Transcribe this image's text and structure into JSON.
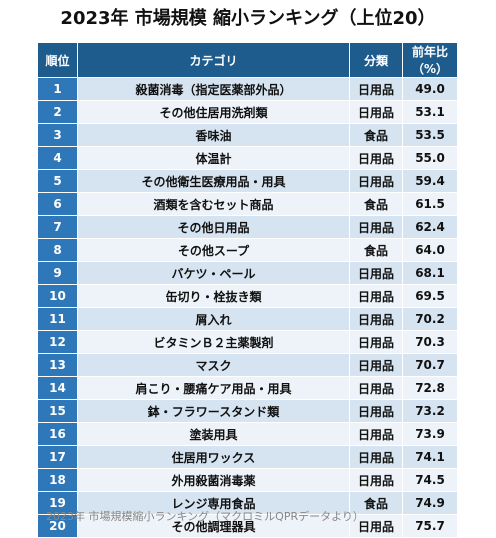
{
  "title": "2023年 市場規模 縮小ランキング（上位20）",
  "headers": {
    "rank": "順位",
    "category": "カテゴリ",
    "classification": "分類",
    "ratio": "前年比（%）"
  },
  "rows": [
    {
      "rank": "1",
      "category": "殺菌消毒（指定医薬部外品）",
      "classification": "日用品",
      "ratio": "49.0"
    },
    {
      "rank": "2",
      "category": "その他住居用洗剤類",
      "classification": "日用品",
      "ratio": "53.1"
    },
    {
      "rank": "3",
      "category": "香味油",
      "classification": "食品",
      "ratio": "53.5"
    },
    {
      "rank": "4",
      "category": "体温計",
      "classification": "日用品",
      "ratio": "55.0"
    },
    {
      "rank": "5",
      "category": "その他衛生医療用品・用具",
      "classification": "日用品",
      "ratio": "59.4"
    },
    {
      "rank": "6",
      "category": "酒類を含むセット商品",
      "classification": "食品",
      "ratio": "61.5"
    },
    {
      "rank": "7",
      "category": "その他日用品",
      "classification": "日用品",
      "ratio": "62.4"
    },
    {
      "rank": "8",
      "category": "その他スープ",
      "classification": "食品",
      "ratio": "64.0"
    },
    {
      "rank": "9",
      "category": "バケツ・ペール",
      "classification": "日用品",
      "ratio": "68.1"
    },
    {
      "rank": "10",
      "category": "缶切り・栓抜き類",
      "classification": "日用品",
      "ratio": "69.5"
    },
    {
      "rank": "11",
      "category": "屑入れ",
      "classification": "日用品",
      "ratio": "70.2"
    },
    {
      "rank": "12",
      "category": "ビタミンＢ２主薬製剤",
      "classification": "日用品",
      "ratio": "70.3"
    },
    {
      "rank": "13",
      "category": "マスク",
      "classification": "日用品",
      "ratio": "70.7"
    },
    {
      "rank": "14",
      "category": "肩こり・腰痛ケア用品・用具",
      "classification": "日用品",
      "ratio": "72.8"
    },
    {
      "rank": "15",
      "category": "鉢・フラワースタンド類",
      "classification": "日用品",
      "ratio": "73.2"
    },
    {
      "rank": "16",
      "category": "塗装用具",
      "classification": "日用品",
      "ratio": "73.9"
    },
    {
      "rank": "17",
      "category": "住居用ワックス",
      "classification": "日用品",
      "ratio": "74.1"
    },
    {
      "rank": "18",
      "category": "外用殺菌消毒薬",
      "classification": "日用品",
      "ratio": "74.5"
    },
    {
      "rank": "19",
      "category": "レンジ専用食品",
      "classification": "食品",
      "ratio": "74.9"
    },
    {
      "rank": "20",
      "category": "その他調理器具",
      "classification": "日用品",
      "ratio": "75.7"
    }
  ],
  "caption": "2023年 市場規模縮小ランキング（マクロミルQPRデータより）",
  "colors": {
    "header_bg": "#1f5c8e",
    "rank_bg": "#2e77b8",
    "row_odd": "#d6e4f1",
    "row_even": "#edf3f9"
  }
}
